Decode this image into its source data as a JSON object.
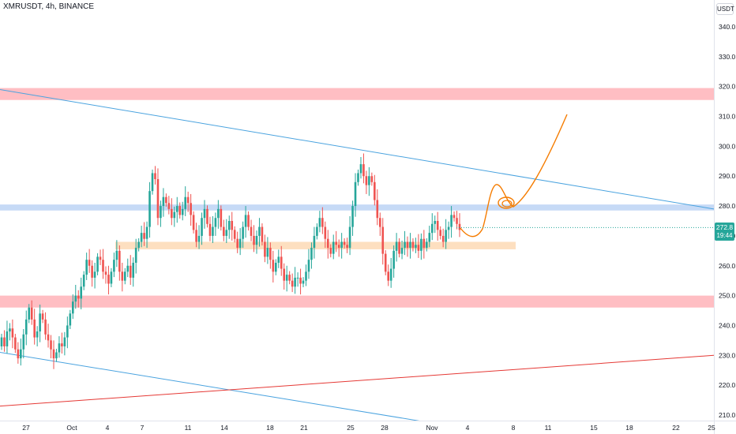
{
  "header": {
    "symbol_line": "XMRUSDT, 4h, BINANCE",
    "currency": "USDT"
  },
  "price_tag": {
    "price": "272.8",
    "countdown": "19:44",
    "color": "#26a69a"
  },
  "colors": {
    "up": "#26a69a",
    "down": "#ef5350",
    "trendline_blue": "#4aa3df",
    "trendline_red": "#e53935",
    "projection": "#f57c00",
    "zone_red": "#ffb3b8",
    "zone_blue": "#bcd3f5",
    "zone_orange": "#fdd9b5"
  },
  "chart_data": {
    "type": "candlestick",
    "symbol": "XMRUSDT",
    "timeframe": "4h",
    "exchange": "BINANCE",
    "y_axis": {
      "ylim": [
        208,
        350
      ],
      "ticks": [
        "210.0",
        "220.0",
        "230.0",
        "240.0",
        "250.0",
        "260.0",
        "270.0",
        "280.0",
        "290.0",
        "300.0",
        "310.0",
        "320.0",
        "330.0",
        "340.0"
      ],
      "position": "right"
    },
    "x_axis": {
      "ticks": [
        "27",
        "Oct",
        "4",
        "7",
        "11",
        "14",
        "18",
        "21",
        "25",
        "28",
        "Nov",
        "4",
        "8",
        "11",
        "15",
        "18",
        "22",
        "25"
      ]
    },
    "last_price": 272.8,
    "closes": [
      236,
      233,
      238,
      239,
      236,
      232,
      229,
      232,
      237,
      242,
      246,
      242,
      236,
      238,
      244,
      242,
      237,
      235,
      232,
      229,
      231,
      234,
      233,
      236,
      240,
      244,
      248,
      250,
      249,
      253,
      257,
      262,
      260,
      256,
      258,
      263,
      262,
      258,
      257,
      254,
      258,
      262,
      265,
      258,
      255,
      258,
      260,
      256,
      261,
      266,
      268,
      271,
      269,
      273,
      285,
      291,
      289,
      276,
      280,
      283,
      281,
      279,
      276,
      278,
      280,
      277,
      279,
      283,
      281,
      277,
      272,
      268,
      270,
      276,
      279,
      274,
      270,
      273,
      276,
      279,
      273,
      270,
      272,
      275,
      272,
      269,
      266,
      269,
      273,
      277,
      273,
      270,
      267,
      270,
      273,
      268,
      263,
      266,
      262,
      258,
      261,
      263,
      259,
      255,
      257,
      255,
      253,
      256,
      256,
      254,
      255,
      258,
      262,
      266,
      270,
      273,
      276,
      273,
      269,
      266,
      264,
      268,
      267,
      266,
      268,
      267,
      266,
      273,
      280,
      288,
      291,
      294,
      290,
      287,
      290,
      288,
      282,
      276,
      273,
      264,
      258,
      255,
      259,
      265,
      268,
      264,
      266,
      268,
      266,
      268,
      266,
      267,
      265,
      269,
      266,
      268,
      271,
      274,
      275,
      272,
      270,
      268,
      272,
      273,
      277,
      276,
      274,
      272
    ],
    "zones": [
      {
        "label": "resistance-zone",
        "from": 315.5,
        "to": 319.5,
        "color": "#ffb3b8"
      },
      {
        "label": "key-level-zone",
        "from": 278.5,
        "to": 280.5,
        "color": "#bcd3f5"
      },
      {
        "label": "support-zone-orange",
        "from": 265.5,
        "to": 268.0,
        "color": "#fdd9b5"
      },
      {
        "label": "support-zone-red",
        "from": 246.0,
        "to": 250.0,
        "color": "#ffb3b8"
      }
    ],
    "trendlines": [
      {
        "label": "descending-resistance",
        "from_price": 319,
        "to_price": 279,
        "color": "#4aa3df"
      },
      {
        "label": "descending-lower",
        "from_price": 231,
        "to_price": 208,
        "color": "#4aa3df"
      },
      {
        "label": "ascending-support",
        "from_price": 213,
        "to_price": 230,
        "color": "#e53935"
      }
    ],
    "grid": false,
    "legend": "none"
  }
}
